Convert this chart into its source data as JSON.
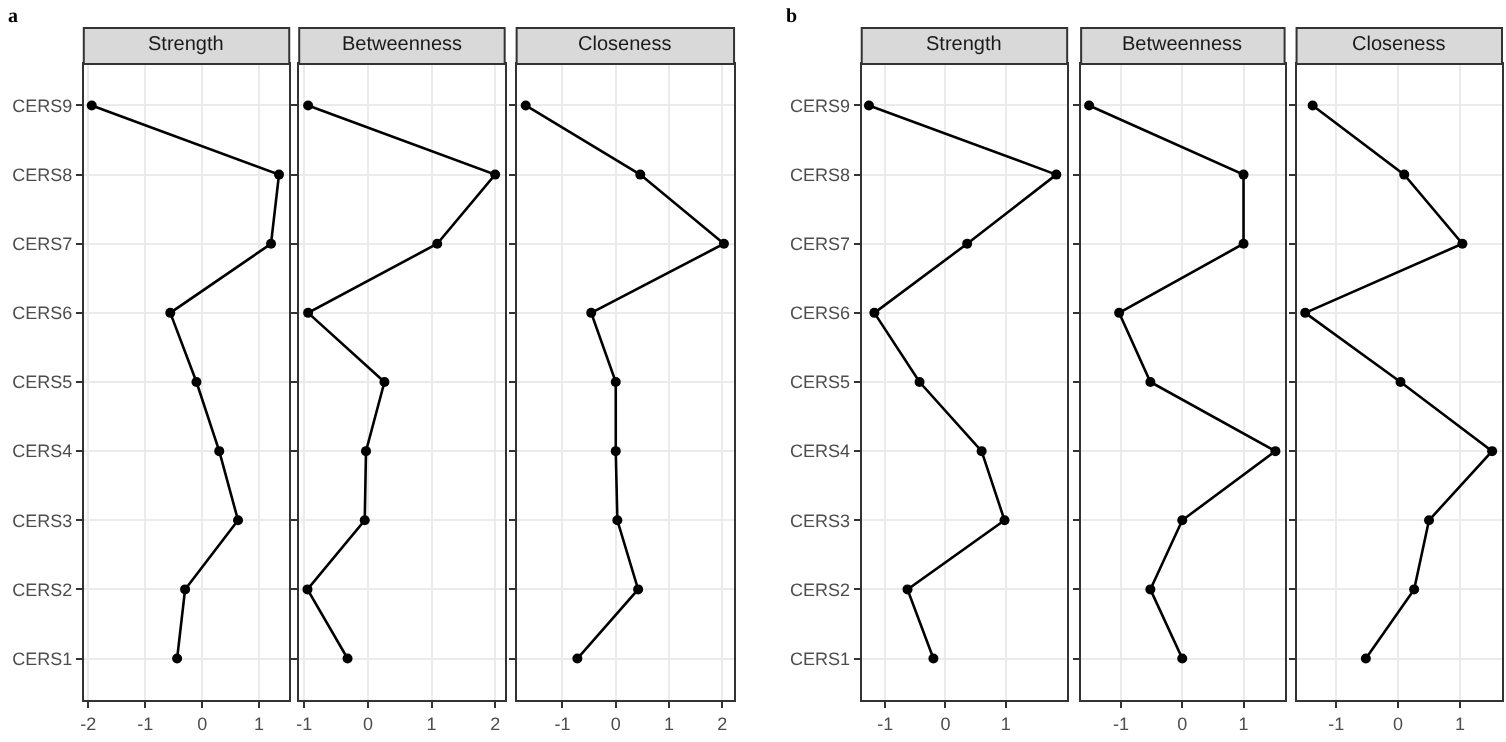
{
  "chart_data": [
    {
      "type": "line",
      "orientation": "horizontal",
      "title": "Strength",
      "annotations": [
        "a"
      ],
      "categories": [
        "CERS9",
        "CERS8",
        "CERS7",
        "CERS6",
        "CERS5",
        "CERS4",
        "CERS3",
        "CERS2",
        "CERS1"
      ],
      "series": [
        {
          "color": "#000000",
          "values": [
            -1.94,
            1.35,
            1.21,
            -0.56,
            -0.1,
            0.3,
            0.63,
            -0.3,
            -0.44
          ]
        }
      ],
      "xlim": [
        -2.08,
        1.53
      ],
      "xticks": [
        -2,
        -1,
        0,
        1
      ],
      "grid": true,
      "marker": "circle",
      "line_style": "solid"
    },
    {
      "type": "line",
      "orientation": "horizontal",
      "title": "Betweenness",
      "categories": [
        "CERS9",
        "CERS8",
        "CERS7",
        "CERS6",
        "CERS5",
        "CERS4",
        "CERS3",
        "CERS2",
        "CERS1"
      ],
      "series": [
        {
          "color": "#000000",
          "values": [
            -0.94,
            2.0,
            1.09,
            -0.94,
            0.26,
            -0.03,
            -0.05,
            -0.95,
            -0.32
          ]
        }
      ],
      "xlim": [
        -1.08,
        2.15
      ],
      "xticks": [
        -1,
        0,
        1,
        2
      ],
      "grid": true,
      "marker": "circle",
      "line_style": "solid",
      "tick_labels": "x"
    },
    {
      "type": "line",
      "orientation": "horizontal",
      "title": "Closeness",
      "categories": [
        "CERS9",
        "CERS8",
        "CERS7",
        "CERS6",
        "CERS5",
        "CERS4",
        "CERS3",
        "CERS2",
        "CERS1"
      ],
      "series": [
        {
          "color": "#000000",
          "values": [
            -1.69,
            0.46,
            2.03,
            -0.46,
            0.0,
            0.0,
            0.03,
            0.42,
            -0.72
          ]
        }
      ],
      "xlim": [
        -1.86,
        2.22
      ],
      "xticks": [
        -1,
        0,
        1,
        2
      ],
      "grid": true,
      "marker": "circle",
      "line_style": "solid",
      "tick_labels": "x"
    },
    {
      "type": "line",
      "orientation": "horizontal",
      "title": "Strength",
      "annotations": [
        "b"
      ],
      "categories": [
        "CERS9",
        "CERS8",
        "CERS7",
        "CERS6",
        "CERS5",
        "CERS4",
        "CERS3",
        "CERS2",
        "CERS1"
      ],
      "series": [
        {
          "color": "#000000",
          "values": [
            -1.27,
            1.84,
            0.36,
            -1.18,
            -0.43,
            0.6,
            0.98,
            -0.63,
            -0.2
          ]
        }
      ],
      "xlim": [
        -1.39,
        2.02
      ],
      "xticks": [
        -1,
        0,
        1
      ],
      "grid": true,
      "marker": "circle",
      "line_style": "solid"
    },
    {
      "type": "line",
      "orientation": "horizontal",
      "title": "Betweenness",
      "categories": [
        "CERS9",
        "CERS8",
        "CERS7",
        "CERS6",
        "CERS5",
        "CERS4",
        "CERS3",
        "CERS2",
        "CERS1"
      ],
      "series": [
        {
          "color": "#000000",
          "values": [
            -1.52,
            1.0,
            1.0,
            -1.03,
            -0.52,
            1.52,
            0.0,
            -0.52,
            0.0
          ]
        }
      ],
      "xlim": [
        -1.65,
        1.67
      ],
      "xticks": [
        -1,
        0,
        1
      ],
      "grid": true,
      "marker": "circle",
      "line_style": "solid",
      "tick_labels": "x"
    },
    {
      "type": "line",
      "orientation": "horizontal",
      "title": "Closeness",
      "categories": [
        "CERS9",
        "CERS8",
        "CERS7",
        "CERS6",
        "CERS5",
        "CERS4",
        "CERS3",
        "CERS2",
        "CERS1"
      ],
      "series": [
        {
          "color": "#000000",
          "values": [
            -1.38,
            0.1,
            1.04,
            -1.5,
            0.04,
            1.52,
            0.5,
            0.26,
            -0.52
          ]
        }
      ],
      "xlim": [
        -1.64,
        1.68
      ],
      "xticks": [
        -1,
        0,
        1
      ],
      "grid": true,
      "marker": "circle",
      "line_style": "solid",
      "tick_labels": "x"
    }
  ]
}
